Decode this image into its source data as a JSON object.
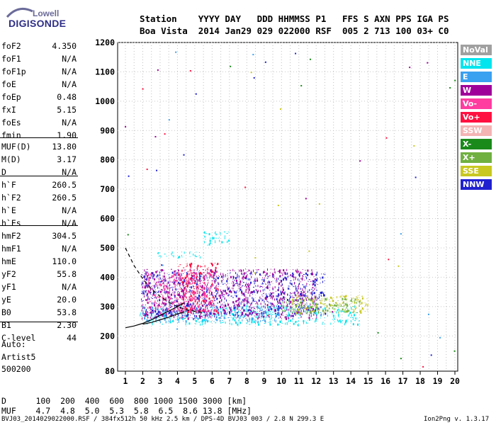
{
  "logo": {
    "line1": "Lowell",
    "line2": "DIGISONDE"
  },
  "header": {
    "row1": "Station    YYYY DAY   DDD HHMMSS P1   FFS S AXN PPS IGA PS",
    "row2": "Boa Vista  2014 Jan29 029 022000 RSF  005 2 713 100 03+ C0"
  },
  "params": [
    {
      "name": "foF2",
      "value": "4.350"
    },
    {
      "name": "foF1",
      "value": "N/A"
    },
    {
      "name": "foF1p",
      "value": "N/A"
    },
    {
      "name": "foE",
      "value": "N/A"
    },
    {
      "name": "foEp",
      "value": "0.48"
    },
    {
      "name": "fxI",
      "value": "5.15"
    },
    {
      "name": "foEs",
      "value": "N/A"
    },
    {
      "name": "fmin",
      "value": "1.90"
    },
    {
      "name": "MUF(D)",
      "value": "13.80"
    },
    {
      "name": "M(D)",
      "value": "3.17"
    },
    {
      "name": "D",
      "value": "N/A"
    },
    {
      "name": "h`F",
      "value": "260.5"
    },
    {
      "name": "h`F2",
      "value": "260.5"
    },
    {
      "name": "h`E",
      "value": "N/A"
    },
    {
      "name": "h`Es",
      "value": "N/A"
    },
    {
      "name": "hmF2",
      "value": "304.5"
    },
    {
      "name": "hmF1",
      "value": "N/A"
    },
    {
      "name": "hmE",
      "value": "110.0"
    },
    {
      "name": "yF2",
      "value": "55.8"
    },
    {
      "name": "yF1",
      "value": "N/A"
    },
    {
      "name": "yE",
      "value": "20.0"
    },
    {
      "name": "B0",
      "value": "53.8"
    },
    {
      "name": "B1",
      "value": "2.30"
    },
    {
      "name": "C-level",
      "value": "44"
    }
  ],
  "auto": {
    "line1": "Auto:",
    "line2": "Artist5",
    "line3": "500200"
  },
  "legend": [
    {
      "label": "NoVal",
      "color": "#a0a0a0"
    },
    {
      "label": "NNE",
      "color": "#00e5ee"
    },
    {
      "label": "E",
      "color": "#3aa0f0"
    },
    {
      "label": "W",
      "color": "#a0009a"
    },
    {
      "label": "Vo-",
      "color": "#ff3ca0"
    },
    {
      "label": "Vo+",
      "color": "#ff1040"
    },
    {
      "label": "SSW",
      "color": "#f4b4b4"
    },
    {
      "label": "X-",
      "color": "#1a8a1a"
    },
    {
      "label": "X+",
      "color": "#70b040"
    },
    {
      "label": "SSE",
      "color": "#c8c820"
    },
    {
      "label": "NNW",
      "color": "#2020d0"
    }
  ],
  "mufTable": {
    "dRow": "D      100  200  400  600  800 1000 1500 3000 [km]",
    "mufRow": "MUF    4.7  4.8  5.0  5.3  5.8  6.5  8.6 13.8 [MHz]"
  },
  "footer": {
    "left": "BVJ03_2014029022000.RSF / 384fx512h 50 kHz 2.5 km / DPS-4D BVJ03 003 / 2.8 N 299.3 E",
    "right": "Ion2Png v. 1.3.17"
  },
  "chart_data": {
    "type": "scatter",
    "title": "",
    "xlabel": "",
    "ylabel": "",
    "xlim": [
      1,
      20
    ],
    "ylim": [
      80,
      1200
    ],
    "x_ticks": [
      1,
      2,
      3,
      4,
      5,
      6,
      7,
      8,
      9,
      10,
      11,
      12,
      13,
      14,
      15,
      16,
      17,
      18,
      19,
      20
    ],
    "y_ticks": [
      80,
      200,
      300,
      400,
      500,
      600,
      700,
      800,
      900,
      1000,
      1100,
      1200
    ],
    "grid": true,
    "traces": [
      {
        "name": "dashed",
        "style": "dashed",
        "x": [
          1.0,
          1.5,
          2.0,
          2.5,
          3.0,
          3.5,
          4.0,
          4.5,
          5.0,
          5.4
        ],
        "y": [
          500,
          440,
          395,
          360,
          335,
          315,
          300,
          290,
          284,
          280
        ]
      },
      {
        "name": "solid",
        "style": "solid",
        "x": [
          1.0,
          1.5,
          2.0,
          2.5,
          3.0,
          3.5,
          4.0,
          4.3,
          4.4
        ],
        "y": [
          228,
          234,
          243,
          255,
          270,
          285,
          300,
          310,
          312
        ]
      },
      {
        "name": "solid-low",
        "style": "solid",
        "x": [
          2.0,
          2.5,
          3.0,
          3.5,
          4.0,
          4.4
        ],
        "y": [
          240,
          246,
          255,
          264,
          275,
          282
        ]
      }
    ],
    "echo_regions": [
      {
        "series": "NNE",
        "x": [
          1.8,
          14.5
        ],
        "y": [
          240,
          305
        ]
      },
      {
        "series": "E",
        "x": [
          2.0,
          10.0
        ],
        "y": [
          250,
          300
        ]
      },
      {
        "series": "NNW",
        "x": [
          1.9,
          12.5
        ],
        "y": [
          270,
          420
        ]
      },
      {
        "series": "W",
        "x": [
          1.9,
          12.0
        ],
        "y": [
          260,
          430
        ]
      },
      {
        "series": "Vo+",
        "x": [
          4.0,
          6.3
        ],
        "y": [
          280,
          450
        ]
      },
      {
        "series": "Vo-",
        "x": [
          2.2,
          6.0
        ],
        "y": [
          280,
          420
        ]
      },
      {
        "series": "SSE",
        "x": [
          10.5,
          15.0
        ],
        "y": [
          280,
          340
        ]
      },
      {
        "series": "X+",
        "x": [
          10.0,
          14.5
        ],
        "y": [
          280,
          330
        ]
      },
      {
        "series": "NNE",
        "x": [
          2.8,
          5.5
        ],
        "y": [
          470,
          490
        ]
      },
      {
        "series": "NNE",
        "x": [
          5.5,
          7.0
        ],
        "y": [
          510,
          560
        ]
      }
    ]
  }
}
